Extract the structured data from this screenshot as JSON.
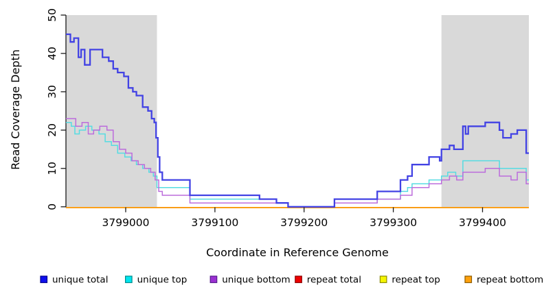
{
  "chart_data": {
    "type": "line",
    "step": true,
    "title": "",
    "xlabel": "Coordinate in Reference Genome",
    "ylabel": "Read Coverage Depth",
    "x_range": [
      3798933,
      3799452
    ],
    "y_range": [
      0,
      50
    ],
    "x_ticks": [
      3799000,
      3799100,
      3799200,
      3799300,
      3799400
    ],
    "y_ticks": [
      0,
      10,
      20,
      30,
      40,
      50
    ],
    "grid": false,
    "legend_position": "bottom",
    "plot_background": "#ffffff",
    "shaded_regions": [
      {
        "x0": 3798933,
        "x1": 3799035,
        "color": "#d9d9d9"
      },
      {
        "x0": 3799354,
        "x1": 3799452,
        "color": "#d9d9d9"
      }
    ],
    "series": [
      {
        "name": "unique total",
        "line_color": "#4242e4",
        "swatch_color": "#0f0fee",
        "swatch_border": "#00008b",
        "points": [
          [
            3798933,
            45
          ],
          [
            3798938,
            43
          ],
          [
            3798942,
            44
          ],
          [
            3798947,
            39
          ],
          [
            3798950,
            41
          ],
          [
            3798954,
            37
          ],
          [
            3798960,
            41
          ],
          [
            3798974,
            39
          ],
          [
            3798981,
            38
          ],
          [
            3798986,
            36
          ],
          [
            3798991,
            35
          ],
          [
            3798998,
            34
          ],
          [
            3799003,
            31
          ],
          [
            3799008,
            30
          ],
          [
            3799012,
            29
          ],
          [
            3799019,
            26
          ],
          [
            3799025,
            25
          ],
          [
            3799029,
            23
          ],
          [
            3799032,
            22
          ],
          [
            3799034,
            18
          ],
          [
            3799036,
            13
          ],
          [
            3799038,
            9
          ],
          [
            3799041,
            7
          ],
          [
            3799072,
            3
          ],
          [
            3799150,
            2
          ],
          [
            3799169,
            1
          ],
          [
            3799182,
            0
          ],
          [
            3799234,
            2
          ],
          [
            3799282,
            4
          ],
          [
            3799308,
            7
          ],
          [
            3799316,
            8
          ],
          [
            3799321,
            11
          ],
          [
            3799340,
            13
          ],
          [
            3799352,
            12
          ],
          [
            3799354,
            15
          ],
          [
            3799363,
            16
          ],
          [
            3799368,
            15
          ],
          [
            3799378,
            21
          ],
          [
            3799381,
            19
          ],
          [
            3799384,
            21
          ],
          [
            3799403,
            22
          ],
          [
            3799419,
            20
          ],
          [
            3799423,
            18
          ],
          [
            3799432,
            19
          ],
          [
            3799439,
            20
          ],
          [
            3799449,
            14
          ],
          [
            3799452,
            14
          ]
        ]
      },
      {
        "name": "unique top",
        "line_color": "#55dce2",
        "swatch_color": "#00e5ee",
        "swatch_border": "#008b8b",
        "points": [
          [
            3798933,
            22
          ],
          [
            3798939,
            21
          ],
          [
            3798943,
            19
          ],
          [
            3798948,
            20
          ],
          [
            3798955,
            21
          ],
          [
            3798962,
            20
          ],
          [
            3798970,
            19
          ],
          [
            3798977,
            17
          ],
          [
            3798984,
            16
          ],
          [
            3798991,
            14
          ],
          [
            3798999,
            13
          ],
          [
            3799006,
            12
          ],
          [
            3799012,
            11
          ],
          [
            3799019,
            10
          ],
          [
            3799026,
            9
          ],
          [
            3799031,
            8
          ],
          [
            3799035,
            5
          ],
          [
            3799072,
            2
          ],
          [
            3799169,
            1
          ],
          [
            3799182,
            0
          ],
          [
            3799234,
            1
          ],
          [
            3799282,
            2
          ],
          [
            3799308,
            4
          ],
          [
            3799316,
            5
          ],
          [
            3799321,
            6
          ],
          [
            3799340,
            7
          ],
          [
            3799354,
            8
          ],
          [
            3799361,
            9
          ],
          [
            3799370,
            8
          ],
          [
            3799378,
            12
          ],
          [
            3799419,
            10
          ],
          [
            3799449,
            7
          ],
          [
            3799452,
            7
          ]
        ]
      },
      {
        "name": "unique bottom",
        "line_color": "#bc6cdc",
        "swatch_color": "#9b30d2",
        "swatch_border": "#551a8b",
        "points": [
          [
            3798933,
            23
          ],
          [
            3798944,
            21
          ],
          [
            3798951,
            22
          ],
          [
            3798958,
            19
          ],
          [
            3798964,
            20
          ],
          [
            3798971,
            21
          ],
          [
            3798979,
            20
          ],
          [
            3798986,
            17
          ],
          [
            3798993,
            15
          ],
          [
            3799000,
            14
          ],
          [
            3799007,
            12
          ],
          [
            3799014,
            11
          ],
          [
            3799021,
            10
          ],
          [
            3799028,
            9
          ],
          [
            3799033,
            7
          ],
          [
            3799037,
            4
          ],
          [
            3799041,
            3
          ],
          [
            3799072,
            1
          ],
          [
            3799182,
            0
          ],
          [
            3799234,
            1
          ],
          [
            3799282,
            2
          ],
          [
            3799308,
            3
          ],
          [
            3799321,
            5
          ],
          [
            3799340,
            6
          ],
          [
            3799354,
            7
          ],
          [
            3799363,
            8
          ],
          [
            3799371,
            7
          ],
          [
            3799378,
            9
          ],
          [
            3799403,
            10
          ],
          [
            3799419,
            8
          ],
          [
            3799432,
            7
          ],
          [
            3799439,
            9
          ],
          [
            3799449,
            6
          ],
          [
            3799452,
            6
          ]
        ]
      },
      {
        "name": "repeat total",
        "line_color": "#dd2222",
        "swatch_color": "#ee0000",
        "swatch_border": "#8b0000",
        "points": [
          [
            3798933,
            0
          ],
          [
            3799452,
            0
          ]
        ]
      },
      {
        "name": "repeat top",
        "line_color": "#eded44",
        "swatch_color": "#f5f500",
        "swatch_border": "#8b8b00",
        "points": [
          [
            3798933,
            0
          ],
          [
            3799452,
            0
          ]
        ]
      },
      {
        "name": "repeat bottom",
        "line_color": "#ff9d0f",
        "swatch_color": "#ffa10c",
        "swatch_border": "#8b5a00",
        "points": [
          [
            3798933,
            0
          ],
          [
            3799452,
            0
          ]
        ]
      }
    ]
  }
}
